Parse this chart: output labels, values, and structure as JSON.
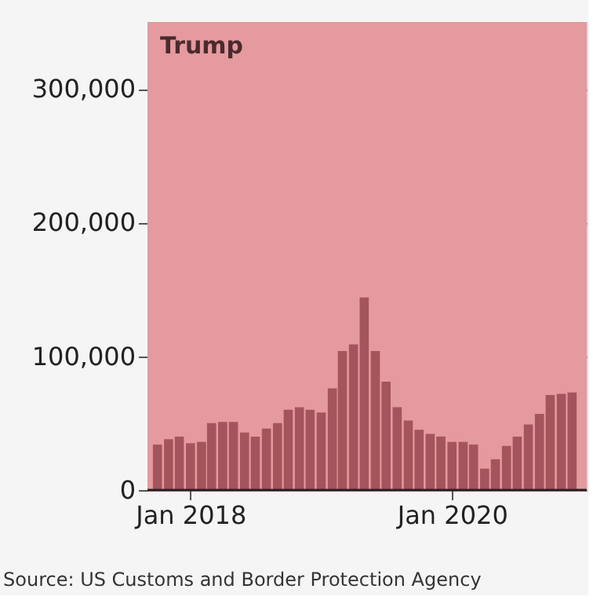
{
  "chart_data": {
    "type": "bar",
    "x": [
      "2017-10",
      "2017-11",
      "2017-12",
      "2018-01",
      "2018-02",
      "2018-03",
      "2018-04",
      "2018-05",
      "2018-06",
      "2018-07",
      "2018-08",
      "2018-09",
      "2018-10",
      "2018-11",
      "2018-12",
      "2019-01",
      "2019-02",
      "2019-03",
      "2019-04",
      "2019-05",
      "2019-06",
      "2019-07",
      "2019-08",
      "2019-09",
      "2019-10",
      "2019-11",
      "2019-12",
      "2020-01",
      "2020-02",
      "2020-03",
      "2020-04",
      "2020-05",
      "2020-06",
      "2020-07",
      "2020-08",
      "2020-09",
      "2020-10",
      "2020-11",
      "2020-12"
    ],
    "values": [
      34000,
      38000,
      40000,
      35000,
      36000,
      50000,
      51000,
      51000,
      43000,
      40000,
      46000,
      50000,
      60000,
      62000,
      60000,
      58000,
      76000,
      104000,
      109000,
      144000,
      104000,
      81000,
      62000,
      52000,
      45000,
      42000,
      40000,
      36000,
      36000,
      34000,
      16000,
      23000,
      33000,
      40000,
      49000,
      57000,
      71000,
      72000,
      73000
    ],
    "color": "#a3545c",
    "xlim": [
      "2017-09-25",
      "2020-12-20"
    ],
    "xticks": [
      {
        "value": "2018-01",
        "label": "Jan 2018"
      },
      {
        "value": "2020-01",
        "label": "Jan 2020"
      }
    ],
    "ylim": [
      0,
      350000
    ],
    "yticks": [
      {
        "value": 0,
        "label": "0"
      },
      {
        "value": 100000,
        "label": "100,000"
      },
      {
        "value": 200000,
        "label": "200,000"
      },
      {
        "value": 300000,
        "label": "300,000"
      }
    ],
    "grid": "y",
    "bands": [
      {
        "axis": "x",
        "from": "2017-01-20",
        "to": "2021-01-20",
        "label": "Trump",
        "color": "#e49a9e"
      }
    ],
    "annotations": [
      "Source: US Customs and Border Protection Agency"
    ]
  }
}
